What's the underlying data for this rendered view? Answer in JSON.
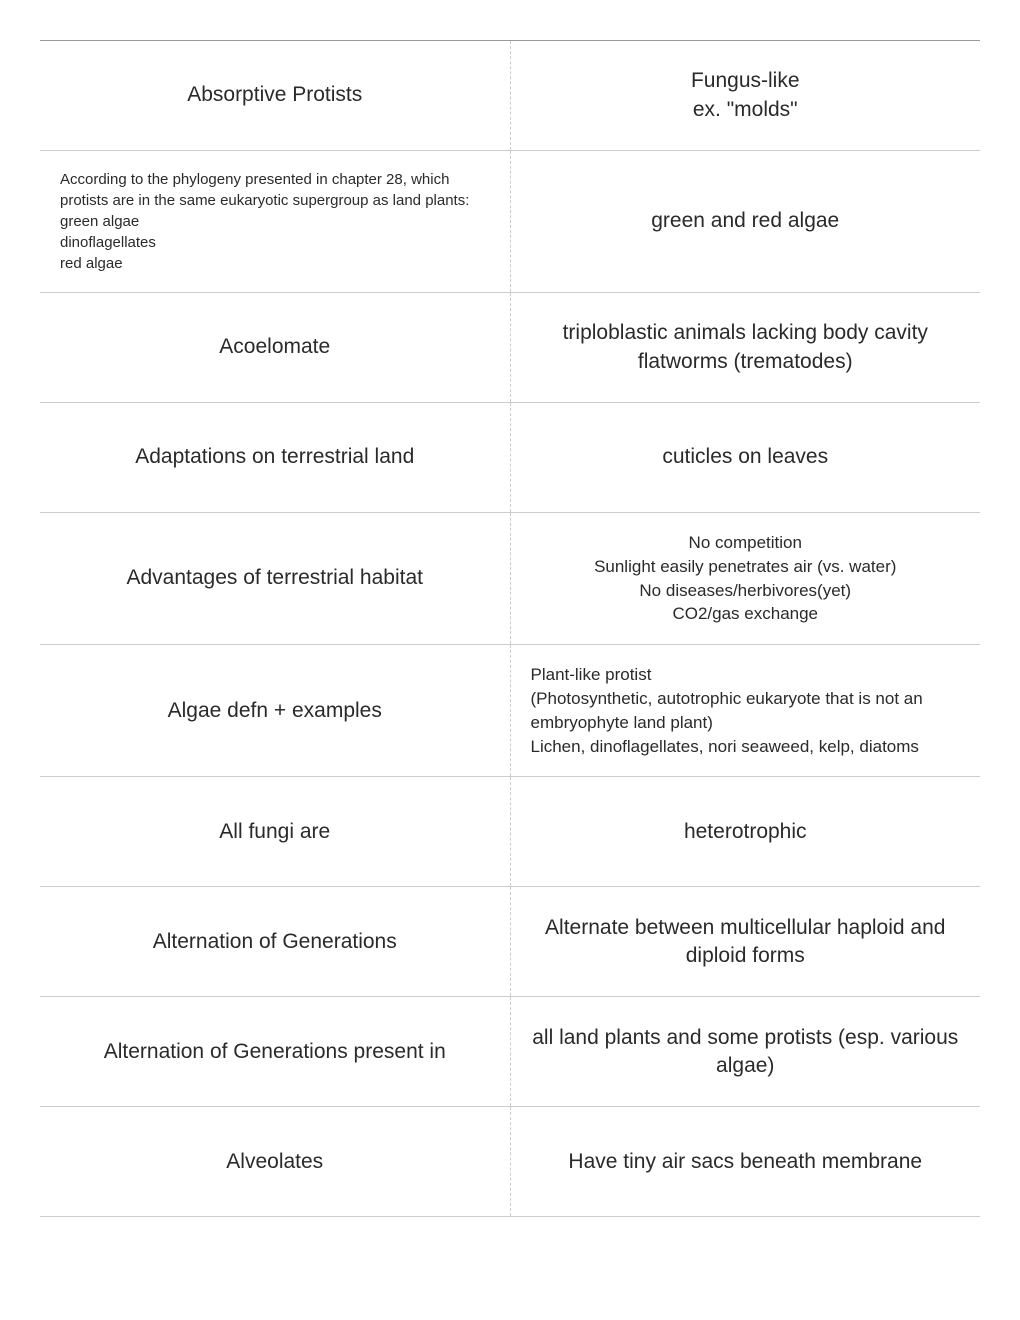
{
  "table": {
    "rows": [
      {
        "term": "Absorptive Protists",
        "term_size": "normal",
        "term_align": "center",
        "definition": "Fungus-like\nex. \"molds\"",
        "def_size": "normal",
        "def_align": "center"
      },
      {
        "term": "According to the phylogeny presented in chapter 28, which protists are in the same eukaryotic supergroup as land plants:\ngreen algae\ndinoflagellates\nred algae",
        "term_size": "small",
        "term_align": "left",
        "definition": "green and red algae",
        "def_size": "normal",
        "def_align": "center"
      },
      {
        "term": "Acoelomate",
        "term_size": "normal",
        "term_align": "center",
        "definition": "triploblastic animals lacking body cavity\nflatworms (trematodes)",
        "def_size": "normal",
        "def_align": "center"
      },
      {
        "term": "Adaptations on terrestrial land",
        "term_size": "normal",
        "term_align": "center",
        "definition": "cuticles on leaves",
        "def_size": "normal",
        "def_align": "center"
      },
      {
        "term": "Advantages of terrestrial habitat",
        "term_size": "normal",
        "term_align": "center",
        "definition": "No competition\nSunlight easily penetrates air (vs. water)\nNo diseases/herbivores(yet)\nCO2/gas exchange",
        "def_size": "medium",
        "def_align": "center"
      },
      {
        "term": "Algae defn + examples",
        "term_size": "normal",
        "term_align": "center",
        "definition": "Plant-like protist\n(Photosynthetic, autotrophic eukaryote that is not an embryophyte land plant)\nLichen, dinoflagellates, nori seaweed, kelp, diatoms",
        "def_size": "medium",
        "def_align": "left"
      },
      {
        "term": "All fungi are",
        "term_size": "normal",
        "term_align": "center",
        "definition": "heterotrophic",
        "def_size": "normal",
        "def_align": "center"
      },
      {
        "term": "Alternation of Generations",
        "term_size": "normal",
        "term_align": "center",
        "definition": "Alternate between multicellular haploid and diploid forms",
        "def_size": "normal",
        "def_align": "center"
      },
      {
        "term": "Alternation of Generations present in",
        "term_size": "normal",
        "term_align": "center",
        "definition": "all land plants and some protists (esp. various algae)",
        "def_size": "normal",
        "def_align": "center"
      },
      {
        "term": "Alveolates",
        "term_size": "normal",
        "term_align": "center",
        "definition": "Have tiny air sacs beneath membrane",
        "def_size": "normal",
        "def_align": "center"
      }
    ],
    "styles": {
      "border_color": "#cccccc",
      "top_border_color": "#999999",
      "divider_style": "dashed",
      "text_color": "#2a2a2a",
      "background_color": "#ffffff",
      "font_size_normal": 21,
      "font_size_medium": 17,
      "font_size_small": 15,
      "font_weight": 300
    }
  }
}
